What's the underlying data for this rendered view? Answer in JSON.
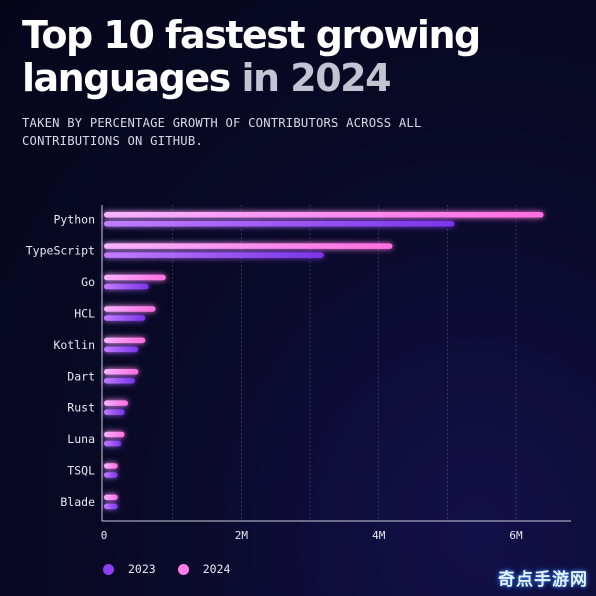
{
  "header": {
    "title_main": "Top 10 fastest growing languages",
    "title_accent": "in 2024",
    "subtitle": "TAKEN BY PERCENTAGE GROWTH OF CONTRIBUTORS ACROSS ALL CONTRIBUTIONS ON GITHUB."
  },
  "colors": {
    "series_2023": "#8a3ff0",
    "series_2024": "#ff7ee8",
    "background": "#070820"
  },
  "chart_data": {
    "type": "bar",
    "orientation": "horizontal",
    "title": "Top 10 fastest growing languages in 2024",
    "subtitle": "TAKEN BY PERCENTAGE GROWTH OF CONTRIBUTORS ACROSS ALL CONTRIBUTIONS ON GITHUB.",
    "categories": [
      "Python",
      "TypeScript",
      "Go",
      "HCL",
      "Kotlin",
      "Dart",
      "Rust",
      "Luna",
      "TSQL",
      "Blade"
    ],
    "series": [
      {
        "name": "2024",
        "values": [
          6.4,
          4.2,
          0.9,
          0.75,
          0.6,
          0.5,
          0.35,
          0.3,
          0.2,
          0.2
        ]
      },
      {
        "name": "2023",
        "values": [
          5.1,
          3.2,
          0.65,
          0.6,
          0.5,
          0.45,
          0.3,
          0.25,
          0.2,
          0.2
        ]
      }
    ],
    "xlim": [
      0,
      6.8
    ],
    "xticks": [
      0,
      2,
      4,
      6
    ],
    "xtick_labels": [
      "0",
      "2M",
      "4M",
      "6M"
    ],
    "grid": true,
    "legend_position": "bottom-left"
  },
  "legend": {
    "items": [
      {
        "label": "2023"
      },
      {
        "label": "2024"
      }
    ]
  },
  "watermark": "奇点手游网"
}
